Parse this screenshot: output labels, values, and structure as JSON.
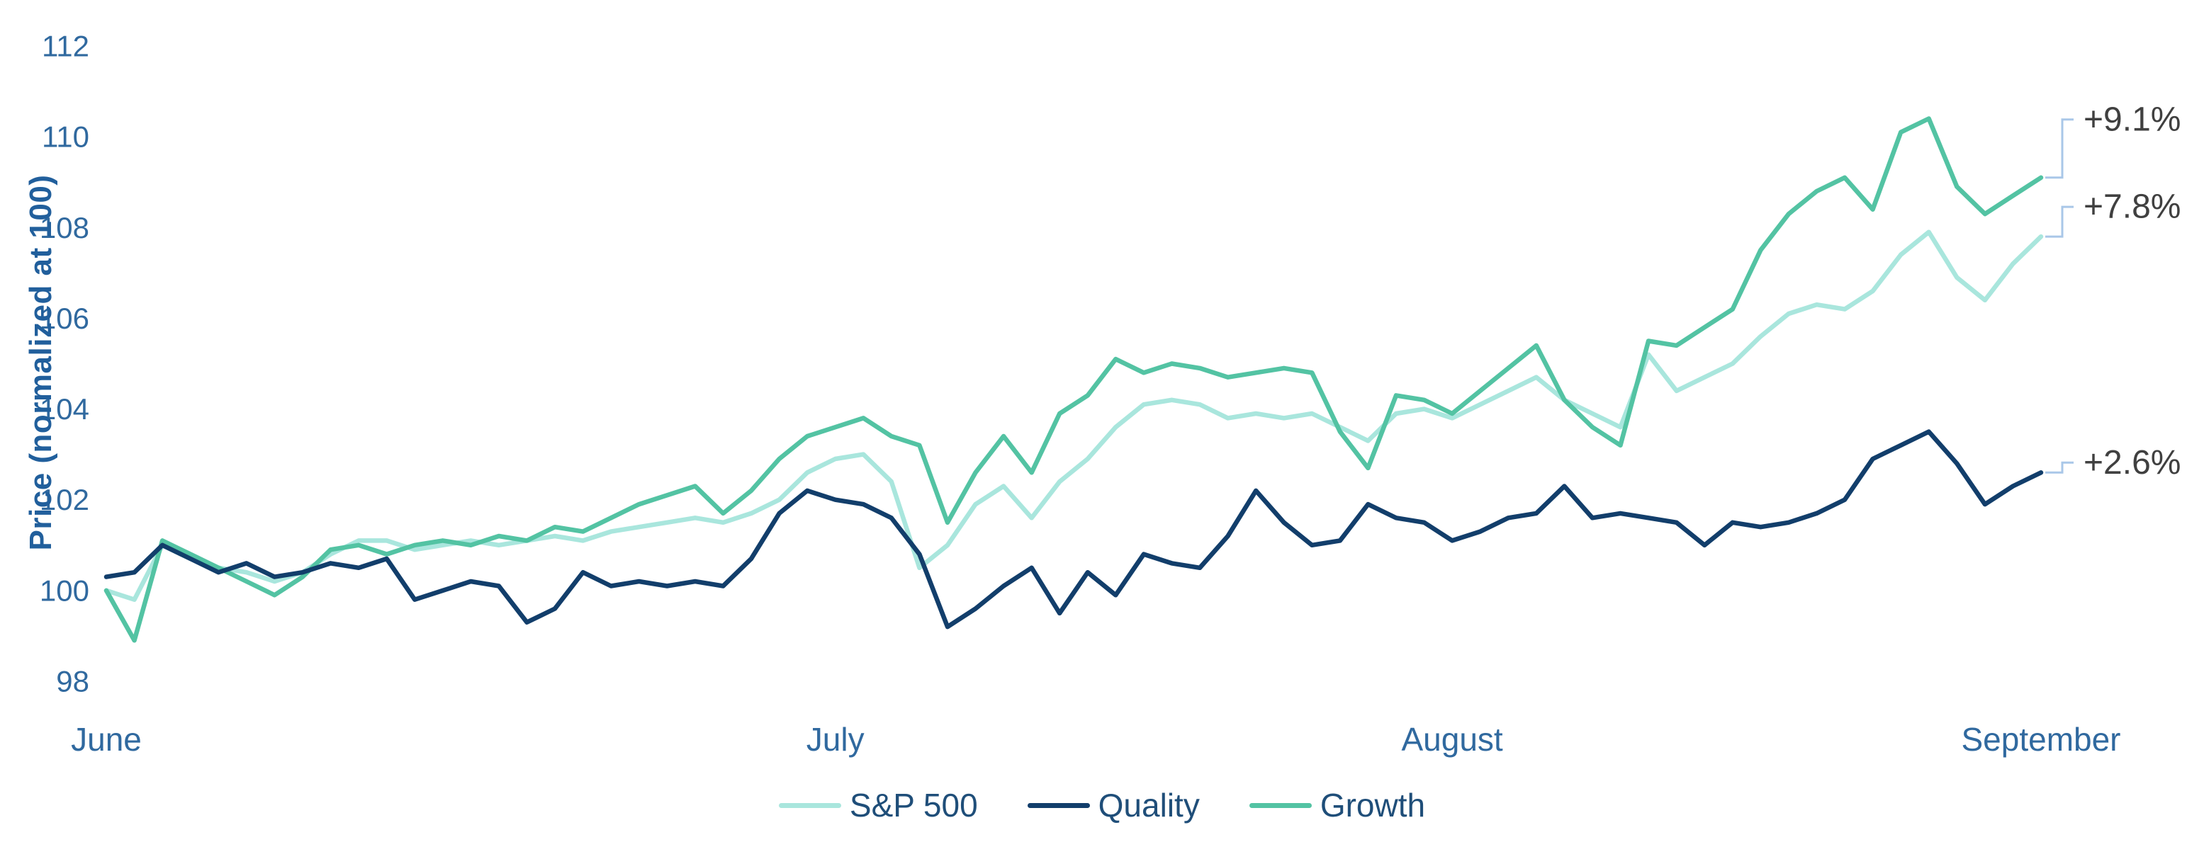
{
  "chart_data": {
    "type": "line",
    "title": "",
    "xlabel": "",
    "ylabel": "Price (normalized at 100)",
    "ylim": [
      98,
      112
    ],
    "yticks": [
      98,
      100,
      102,
      104,
      106,
      108,
      110,
      112
    ],
    "x_tick_labels": [
      "June",
      "July",
      "August",
      "September"
    ],
    "x_tick_indices": [
      0,
      26,
      48,
      69
    ],
    "grid": false,
    "legend_position": "bottom",
    "series": [
      {
        "name": "S&P 500",
        "color": "#a9e6dd",
        "end_label": "+7.8%",
        "label_offset": -42,
        "values": [
          100.0,
          99.8,
          101.0,
          100.7,
          100.5,
          100.4,
          100.2,
          100.4,
          100.8,
          101.1,
          101.1,
          100.9,
          101.0,
          101.1,
          101.0,
          101.1,
          101.2,
          101.1,
          101.3,
          101.4,
          101.5,
          101.6,
          101.5,
          101.7,
          102.0,
          102.6,
          102.9,
          103.0,
          102.4,
          100.5,
          101.0,
          101.9,
          102.3,
          101.6,
          102.4,
          102.9,
          103.6,
          104.1,
          104.2,
          104.1,
          103.8,
          103.9,
          103.8,
          103.9,
          103.6,
          103.3,
          103.9,
          104.0,
          103.8,
          104.1,
          104.4,
          104.7,
          104.2,
          103.9,
          103.6,
          105.2,
          104.4,
          104.7,
          105.0,
          105.6,
          106.1,
          106.3,
          106.2,
          106.6,
          107.4,
          107.9,
          106.9,
          106.4,
          107.2,
          107.8
        ]
      },
      {
        "name": "Quality",
        "color": "#123e6b",
        "end_label": "+2.6%",
        "label_offset": -14,
        "values": [
          100.3,
          100.4,
          101.0,
          100.7,
          100.4,
          100.6,
          100.3,
          100.4,
          100.6,
          100.5,
          100.7,
          99.8,
          100.0,
          100.2,
          100.1,
          99.3,
          99.6,
          100.4,
          100.1,
          100.2,
          100.1,
          100.2,
          100.1,
          100.7,
          101.7,
          102.2,
          102.0,
          101.9,
          101.6,
          100.8,
          99.2,
          99.6,
          100.1,
          100.5,
          99.5,
          100.4,
          99.9,
          100.8,
          100.6,
          100.5,
          101.2,
          102.2,
          101.5,
          101.0,
          101.1,
          101.9,
          101.6,
          101.5,
          101.1,
          101.3,
          101.6,
          101.7,
          102.3,
          101.6,
          101.7,
          101.6,
          101.5,
          101.0,
          101.5,
          101.4,
          101.5,
          101.7,
          102.0,
          102.9,
          103.2,
          103.5,
          102.8,
          101.9,
          102.3,
          102.6
        ]
      },
      {
        "name": "Growth",
        "color": "#53c3a3",
        "end_label": "+9.1%",
        "label_offset": -82,
        "values": [
          100.0,
          98.9,
          101.1,
          100.8,
          100.5,
          100.2,
          99.9,
          100.3,
          100.9,
          101.0,
          100.8,
          101.0,
          101.1,
          101.0,
          101.2,
          101.1,
          101.4,
          101.3,
          101.6,
          101.9,
          102.1,
          102.3,
          101.7,
          102.2,
          102.9,
          103.4,
          103.6,
          103.8,
          103.4,
          103.2,
          101.5,
          102.6,
          103.4,
          102.6,
          103.9,
          104.3,
          105.1,
          104.8,
          105.0,
          104.9,
          104.7,
          104.8,
          104.9,
          104.8,
          103.5,
          102.7,
          104.3,
          104.2,
          103.9,
          104.4,
          104.9,
          105.4,
          104.2,
          103.6,
          103.2,
          105.5,
          105.4,
          105.8,
          106.2,
          107.5,
          108.3,
          108.8,
          109.1,
          108.4,
          110.1,
          110.4,
          108.9,
          108.3,
          108.7,
          109.1
        ]
      }
    ]
  },
  "colors": {
    "background": "#ffffff",
    "axis_text": "#30699f",
    "axis_title": "#215f9c",
    "legend_text": "#1f4e79",
    "end_label_text": "#404040",
    "connector": "#a9c7e8"
  }
}
